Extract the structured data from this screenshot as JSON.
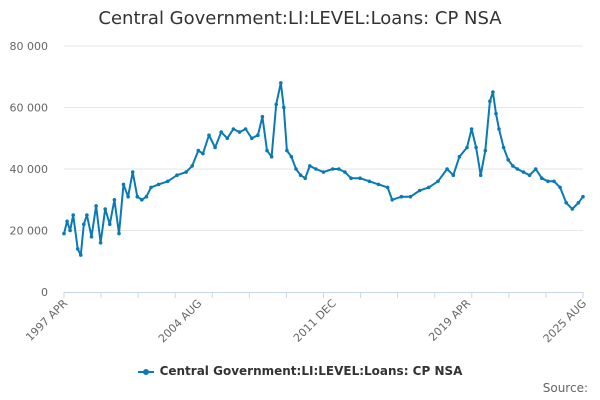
{
  "chart_data": {
    "type": "line",
    "title": "Central Government:LI:LEVEL:Loans: CP NSA",
    "xlabel": "",
    "ylabel": "",
    "ylim": [
      0,
      80000
    ],
    "yticks": [
      0,
      20000,
      40000,
      60000,
      80000
    ],
    "ytick_labels": [
      "0",
      "20 000",
      "40 000",
      "60 000",
      "80 000"
    ],
    "xlim": [
      "1997-04",
      "2025-08"
    ],
    "xtick_labels": [
      "1997 APR",
      "2004 AUG",
      "2011 DEC",
      "2019 APR",
      "2025 AUG"
    ],
    "xtick_dates": [
      "1997-04",
      "2004-08",
      "2011-12",
      "2019-04",
      "2025-08"
    ],
    "grid": true,
    "legend": "bottom",
    "series": [
      {
        "name": "Central Government:LI:LEVEL:Loans: CP NSA",
        "color": "#0a7ab5",
        "points": [
          [
            "1997-04",
            19000
          ],
          [
            "1997-06",
            23000
          ],
          [
            "1997-08",
            20000
          ],
          [
            "1997-10",
            25000
          ],
          [
            "1998-01",
            14000
          ],
          [
            "1998-03",
            12000
          ],
          [
            "1998-05",
            22000
          ],
          [
            "1998-07",
            25000
          ],
          [
            "1998-10",
            18000
          ],
          [
            "1999-01",
            28000
          ],
          [
            "1999-04",
            16000
          ],
          [
            "1999-07",
            27000
          ],
          [
            "1999-10",
            22000
          ],
          [
            "2000-01",
            30000
          ],
          [
            "2000-04",
            19000
          ],
          [
            "2000-07",
            35000
          ],
          [
            "2000-10",
            31000
          ],
          [
            "2001-01",
            39000
          ],
          [
            "2001-04",
            31000
          ],
          [
            "2001-07",
            30000
          ],
          [
            "2001-10",
            31000
          ],
          [
            "2002-01",
            34000
          ],
          [
            "2002-06",
            35000
          ],
          [
            "2002-12",
            36000
          ],
          [
            "2003-06",
            38000
          ],
          [
            "2003-12",
            39000
          ],
          [
            "2004-04",
            41000
          ],
          [
            "2004-08",
            46000
          ],
          [
            "2004-11",
            45000
          ],
          [
            "2005-03",
            51000
          ],
          [
            "2005-07",
            47000
          ],
          [
            "2005-11",
            52000
          ],
          [
            "2006-03",
            50000
          ],
          [
            "2006-07",
            53000
          ],
          [
            "2006-11",
            52000
          ],
          [
            "2007-03",
            53000
          ],
          [
            "2007-07",
            50000
          ],
          [
            "2007-11",
            51000
          ],
          [
            "2008-02",
            57000
          ],
          [
            "2008-05",
            46000
          ],
          [
            "2008-08",
            44000
          ],
          [
            "2008-11",
            61000
          ],
          [
            "2009-02",
            68000
          ],
          [
            "2009-04",
            60000
          ],
          [
            "2009-06",
            46000
          ],
          [
            "2009-09",
            44000
          ],
          [
            "2009-12",
            40000
          ],
          [
            "2010-03",
            38000
          ],
          [
            "2010-06",
            37000
          ],
          [
            "2010-09",
            41000
          ],
          [
            "2011-01",
            40000
          ],
          [
            "2011-06",
            39000
          ],
          [
            "2011-12",
            40000
          ],
          [
            "2012-04",
            40000
          ],
          [
            "2012-08",
            39000
          ],
          [
            "2012-12",
            37000
          ],
          [
            "2013-06",
            37000
          ],
          [
            "2013-12",
            36000
          ],
          [
            "2014-06",
            35000
          ],
          [
            "2014-12",
            34000
          ],
          [
            "2015-03",
            30000
          ],
          [
            "2015-09",
            31000
          ],
          [
            "2016-03",
            31000
          ],
          [
            "2016-09",
            33000
          ],
          [
            "2017-03",
            34000
          ],
          [
            "2017-09",
            36000
          ],
          [
            "2018-03",
            40000
          ],
          [
            "2018-07",
            38000
          ],
          [
            "2018-11",
            44000
          ],
          [
            "2019-04",
            47000
          ],
          [
            "2019-07",
            53000
          ],
          [
            "2019-10",
            47000
          ],
          [
            "2020-01",
            38000
          ],
          [
            "2020-04",
            46000
          ],
          [
            "2020-07",
            62000
          ],
          [
            "2020-09",
            65000
          ],
          [
            "2020-11",
            58000
          ],
          [
            "2021-01",
            53000
          ],
          [
            "2021-04",
            47000
          ],
          [
            "2021-07",
            43000
          ],
          [
            "2021-10",
            41000
          ],
          [
            "2022-01",
            40000
          ],
          [
            "2022-05",
            39000
          ],
          [
            "2022-09",
            38000
          ],
          [
            "2023-01",
            40000
          ],
          [
            "2023-05",
            37000
          ],
          [
            "2023-09",
            36000
          ],
          [
            "2024-01",
            36000
          ],
          [
            "2024-05",
            34000
          ],
          [
            "2024-09",
            29000
          ],
          [
            "2025-01",
            27000
          ],
          [
            "2025-05",
            29000
          ],
          [
            "2025-08",
            31000
          ]
        ]
      }
    ],
    "source_label": "Source:"
  }
}
